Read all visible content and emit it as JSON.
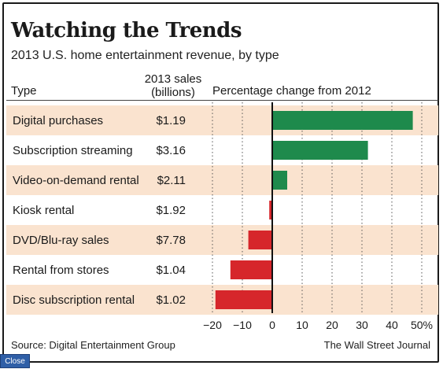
{
  "header": {
    "title": "Watching the Trends",
    "subtitle": "2013 U.S. home entertainment revenue, by type"
  },
  "columns": {
    "type": "Type",
    "sales_line1": "2013 sales",
    "sales_line2": "(billions)",
    "change": "Percentage change from 2012"
  },
  "colors": {
    "positive": "#1e8a4c",
    "negative": "#d6262b",
    "stripe": "#fae3cf",
    "zero_line": "#111111",
    "grid": "#555555"
  },
  "chart_data": {
    "type": "bar",
    "orientation": "horizontal",
    "categories": [
      "Digital purchases",
      "Subscription streaming",
      "Video-on-demand rental",
      "Kiosk rental",
      "DVD/Blu-ray sales",
      "Rental from stores",
      "Disc subscription rental"
    ],
    "sales": [
      "$1.19",
      "$3.16",
      "$2.11",
      "$1.92",
      "$7.78",
      "$1.04",
      "$1.02"
    ],
    "values": [
      47,
      32,
      5,
      -1,
      -8,
      -14,
      -19
    ],
    "xlim": [
      -20,
      50
    ],
    "xticks": [
      -20,
      -10,
      0,
      10,
      20,
      30,
      40,
      50
    ],
    "xtick_labels": [
      "−20",
      "−10",
      "0",
      "10",
      "20",
      "30",
      "40",
      "50%"
    ],
    "grid": "dotted vertical",
    "title": "Watching the Trends",
    "xlabel": "Percentage change from 2012"
  },
  "footer": {
    "source": "Source: Digital Entertainment Group",
    "credit": "The Wall Street Journal"
  },
  "overlay": {
    "close_label": "Close"
  }
}
